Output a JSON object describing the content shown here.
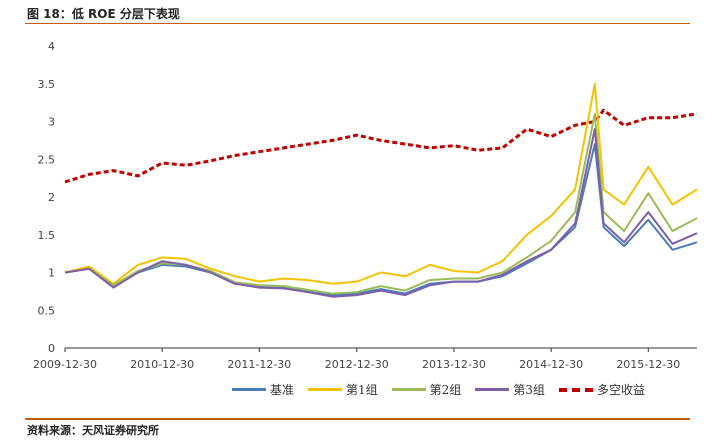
{
  "title": "图 18：低 ROE 分层下表现",
  "source": "资料来源：天风证券研究所",
  "chart_data": {
    "type": "line",
    "ylim": [
      0,
      4
    ],
    "yticks": [
      "0",
      "0.5",
      "1",
      "1.5",
      "2",
      "2.5",
      "3",
      "3.5",
      "4"
    ],
    "xticks": [
      "2009-12-30",
      "2010-12-30",
      "2011-12-30",
      "2012-12-30",
      "2013-12-30",
      "2014-12-30",
      "2015-12-30"
    ],
    "x": [
      "2009-12-30",
      "2010-03-30",
      "2010-06-30",
      "2010-09-30",
      "2010-12-30",
      "2011-03-30",
      "2011-06-30",
      "2011-09-30",
      "2011-12-30",
      "2012-03-30",
      "2012-06-30",
      "2012-09-30",
      "2012-12-30",
      "2013-03-30",
      "2013-06-30",
      "2013-09-30",
      "2013-12-30",
      "2014-03-30",
      "2014-06-30",
      "2014-09-30",
      "2014-12-30",
      "2015-03-30",
      "2015-06-12",
      "2015-07-15",
      "2015-09-30",
      "2015-12-30",
      "2016-03-30",
      "2016-06-30"
    ],
    "series": [
      {
        "name": "基准",
        "color": "#4a7ebb",
        "values": [
          1.0,
          1.05,
          0.82,
          1.0,
          1.1,
          1.08,
          1.0,
          0.85,
          0.82,
          0.8,
          0.75,
          0.7,
          0.72,
          0.78,
          0.72,
          0.85,
          0.88,
          0.88,
          0.95,
          1.12,
          1.3,
          1.6,
          2.7,
          1.6,
          1.35,
          1.7,
          1.3,
          1.4
        ]
      },
      {
        "name": "第1组",
        "color": "#f5c200",
        "values": [
          1.0,
          1.08,
          0.85,
          1.1,
          1.2,
          1.18,
          1.05,
          0.95,
          0.88,
          0.92,
          0.9,
          0.85,
          0.88,
          1.0,
          0.95,
          1.1,
          1.02,
          1.0,
          1.15,
          1.5,
          1.75,
          2.1,
          3.5,
          2.1,
          1.9,
          2.4,
          1.9,
          2.1
        ]
      },
      {
        "name": "第2组",
        "color": "#9bbb59",
        "values": [
          1.0,
          1.05,
          0.83,
          1.02,
          1.12,
          1.1,
          1.02,
          0.87,
          0.83,
          0.82,
          0.77,
          0.72,
          0.74,
          0.82,
          0.76,
          0.9,
          0.92,
          0.92,
          1.0,
          1.2,
          1.42,
          1.8,
          3.1,
          1.8,
          1.55,
          2.05,
          1.55,
          1.72
        ]
      },
      {
        "name": "第3组",
        "color": "#7e5ea6",
        "values": [
          1.0,
          1.05,
          0.8,
          1.0,
          1.15,
          1.1,
          1.0,
          0.85,
          0.8,
          0.79,
          0.74,
          0.68,
          0.7,
          0.76,
          0.7,
          0.83,
          0.88,
          0.88,
          0.97,
          1.15,
          1.3,
          1.65,
          2.9,
          1.65,
          1.4,
          1.8,
          1.38,
          1.52
        ]
      },
      {
        "name": "多空收益",
        "color": "#c00000",
        "dashed": true,
        "values": [
          2.2,
          2.3,
          2.35,
          2.28,
          2.45,
          2.42,
          2.48,
          2.55,
          2.6,
          2.65,
          2.7,
          2.75,
          2.82,
          2.75,
          2.7,
          2.65,
          2.68,
          2.62,
          2.65,
          2.9,
          2.8,
          2.95,
          3.0,
          3.15,
          2.95,
          3.05,
          3.05,
          3.1
        ]
      }
    ]
  }
}
